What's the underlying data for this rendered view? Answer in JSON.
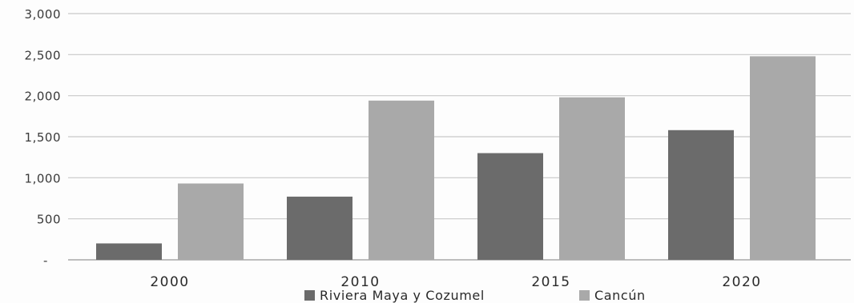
{
  "chart_data": {
    "type": "bar",
    "categories": [
      "2000",
      "2010",
      "2015",
      "2020"
    ],
    "series": [
      {
        "name": "Riviera Maya y Cozumel",
        "values": [
          200,
          770,
          1300,
          1580
        ]
      },
      {
        "name": "Cancún",
        "values": [
          930,
          1940,
          1980,
          2480
        ]
      }
    ],
    "y_tick_labels": [
      "-",
      "500",
      "1,000",
      "1,500",
      "2,000",
      "2,500",
      "3,000"
    ],
    "ylim": [
      0,
      3000
    ],
    "grid": true,
    "legend_position": "bottom",
    "colors": {
      "Riviera Maya y Cozumel": "#6b6b6b",
      "Cancún": "#a9a9a9"
    }
  }
}
